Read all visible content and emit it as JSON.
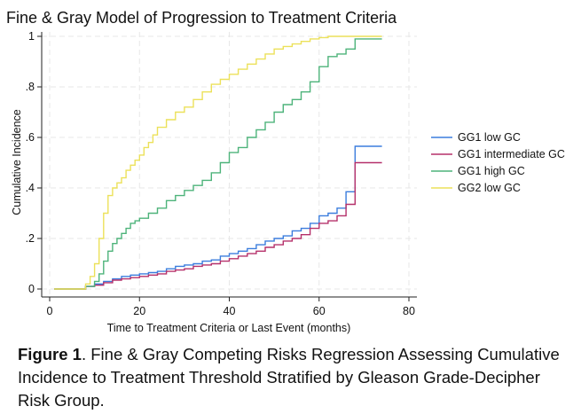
{
  "chart_data": {
    "type": "line",
    "step": true,
    "title": "Fine & Gray Model of Progression to Treatment Criteria",
    "xlabel": "Time to Treatment Criteria or Last Event (months)",
    "ylabel": "Cumulative Incidence",
    "xlim": [
      0,
      80
    ],
    "ylim": [
      0,
      1
    ],
    "xticks": [
      0,
      20,
      40,
      60,
      80
    ],
    "xtick_labels": [
      "0",
      "20",
      "40",
      "60",
      "80"
    ],
    "yticks": [
      0,
      0.2,
      0.4,
      0.6,
      0.8,
      1
    ],
    "ytick_labels": [
      "0",
      ".2",
      ".4",
      ".6",
      ".8",
      "1"
    ],
    "grid": true,
    "legend_position": "right",
    "series": [
      {
        "name": "GG1 low GC",
        "color": "#3b7ddd",
        "x": [
          1,
          6,
          8,
          10,
          12,
          14,
          16,
          18,
          20,
          22,
          24,
          26,
          28,
          30,
          32,
          34,
          36,
          38,
          40,
          42,
          44,
          46,
          48,
          50,
          52,
          54,
          56,
          58,
          60,
          62,
          64,
          66,
          68,
          74
        ],
        "y": [
          0,
          0,
          0.01,
          0.02,
          0.03,
          0.04,
          0.05,
          0.055,
          0.06,
          0.065,
          0.07,
          0.08,
          0.09,
          0.095,
          0.1,
          0.11,
          0.115,
          0.13,
          0.14,
          0.15,
          0.16,
          0.175,
          0.19,
          0.2,
          0.21,
          0.23,
          0.24,
          0.26,
          0.29,
          0.3,
          0.32,
          0.385,
          0.565,
          0.565
        ]
      },
      {
        "name": "GG1 intermediate GC",
        "color": "#b5306a",
        "x": [
          1,
          6,
          8,
          10,
          12,
          14,
          16,
          18,
          20,
          22,
          24,
          26,
          28,
          30,
          32,
          34,
          36,
          38,
          40,
          42,
          44,
          46,
          48,
          50,
          52,
          54,
          56,
          58,
          60,
          62,
          64,
          66,
          68,
          74
        ],
        "y": [
          0,
          0,
          0.01,
          0.015,
          0.025,
          0.035,
          0.04,
          0.045,
          0.05,
          0.055,
          0.06,
          0.07,
          0.075,
          0.08,
          0.09,
          0.095,
          0.1,
          0.11,
          0.12,
          0.13,
          0.14,
          0.15,
          0.165,
          0.175,
          0.19,
          0.2,
          0.215,
          0.24,
          0.26,
          0.27,
          0.29,
          0.335,
          0.5,
          0.5
        ]
      },
      {
        "name": "GG1 high GC",
        "color": "#4db37a",
        "x": [
          1,
          6,
          8,
          10,
          11,
          12,
          13,
          14,
          15,
          16,
          17,
          18,
          19,
          20,
          22,
          24,
          26,
          28,
          30,
          32,
          34,
          36,
          38,
          40,
          42,
          44,
          46,
          48,
          50,
          52,
          54,
          56,
          58,
          60,
          62,
          64,
          66,
          68,
          74
        ],
        "y": [
          0,
          0,
          0.01,
          0.03,
          0.06,
          0.11,
          0.15,
          0.18,
          0.2,
          0.22,
          0.24,
          0.26,
          0.27,
          0.28,
          0.3,
          0.32,
          0.35,
          0.37,
          0.39,
          0.41,
          0.43,
          0.46,
          0.5,
          0.54,
          0.56,
          0.6,
          0.63,
          0.66,
          0.7,
          0.73,
          0.75,
          0.78,
          0.82,
          0.88,
          0.92,
          0.93,
          0.95,
          0.99,
          0.99
        ]
      },
      {
        "name": "GG2 low GC",
        "color": "#ece15a",
        "x": [
          1,
          6,
          8,
          9,
          10,
          11,
          12,
          13,
          14,
          15,
          16,
          17,
          18,
          19,
          20,
          21,
          22,
          23,
          24,
          26,
          28,
          30,
          32,
          34,
          36,
          38,
          40,
          42,
          44,
          46,
          48,
          50,
          52,
          54,
          56,
          58,
          60,
          62,
          64,
          66,
          68,
          74
        ],
        "y": [
          0,
          0,
          0.02,
          0.05,
          0.1,
          0.2,
          0.3,
          0.37,
          0.4,
          0.42,
          0.44,
          0.47,
          0.49,
          0.51,
          0.53,
          0.56,
          0.58,
          0.61,
          0.64,
          0.67,
          0.7,
          0.72,
          0.75,
          0.78,
          0.81,
          0.83,
          0.85,
          0.87,
          0.89,
          0.91,
          0.93,
          0.95,
          0.96,
          0.97,
          0.98,
          0.99,
          0.995,
          1.0,
          1.0,
          1.0,
          1.0,
          1.0
        ]
      }
    ]
  },
  "caption": {
    "label": "Figure 1",
    "text": ". Fine & Gray Competing Risks Regression Assessing Cumulative Incidence to Treatment Threshold Stratified by Gleason Grade-Decipher Risk Group."
  }
}
